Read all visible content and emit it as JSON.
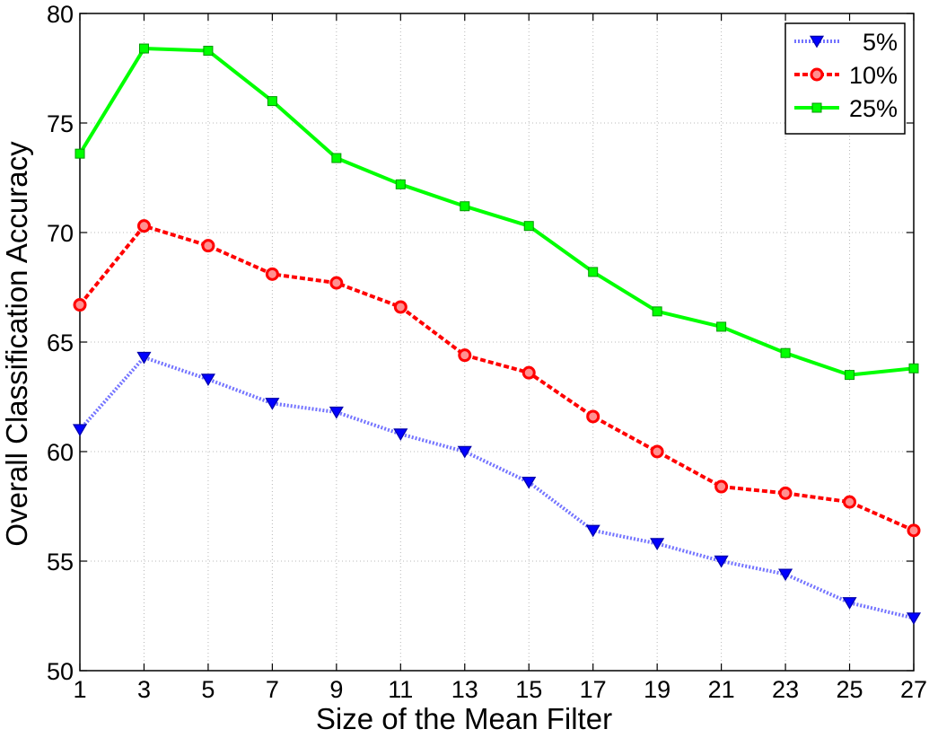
{
  "chart_data": {
    "type": "line",
    "title": "",
    "xlabel": "Size of the Mean Filter",
    "ylabel": "Overall Classification Accuracy",
    "x": [
      1,
      3,
      5,
      7,
      9,
      11,
      13,
      15,
      17,
      19,
      21,
      23,
      25,
      27
    ],
    "xlim": [
      1,
      27
    ],
    "ylim": [
      50,
      80
    ],
    "yticks": [
      50,
      55,
      60,
      65,
      70,
      75,
      80
    ],
    "grid": true,
    "legend_position": "top-right",
    "series": [
      {
        "name": "5%",
        "color": "#0000ff",
        "line_style": "dotted",
        "marker": "triangle-down",
        "values": [
          61.0,
          64.3,
          63.3,
          62.2,
          61.8,
          60.8,
          60.0,
          58.6,
          56.4,
          55.8,
          55.0,
          54.4,
          53.1,
          52.4
        ]
      },
      {
        "name": "10%",
        "color": "#ff0000",
        "line_style": "dashed",
        "marker": "circle",
        "values": [
          66.7,
          70.3,
          69.4,
          68.1,
          67.7,
          66.6,
          64.4,
          63.6,
          61.6,
          60.0,
          58.4,
          58.1,
          57.7,
          56.4
        ]
      },
      {
        "name": "25%",
        "color": "#00ff00",
        "line_style": "solid",
        "marker": "square",
        "values": [
          73.6,
          78.4,
          78.3,
          76.0,
          73.4,
          72.2,
          71.2,
          70.3,
          68.2,
          66.4,
          65.7,
          64.5,
          63.5,
          63.8
        ]
      }
    ]
  }
}
